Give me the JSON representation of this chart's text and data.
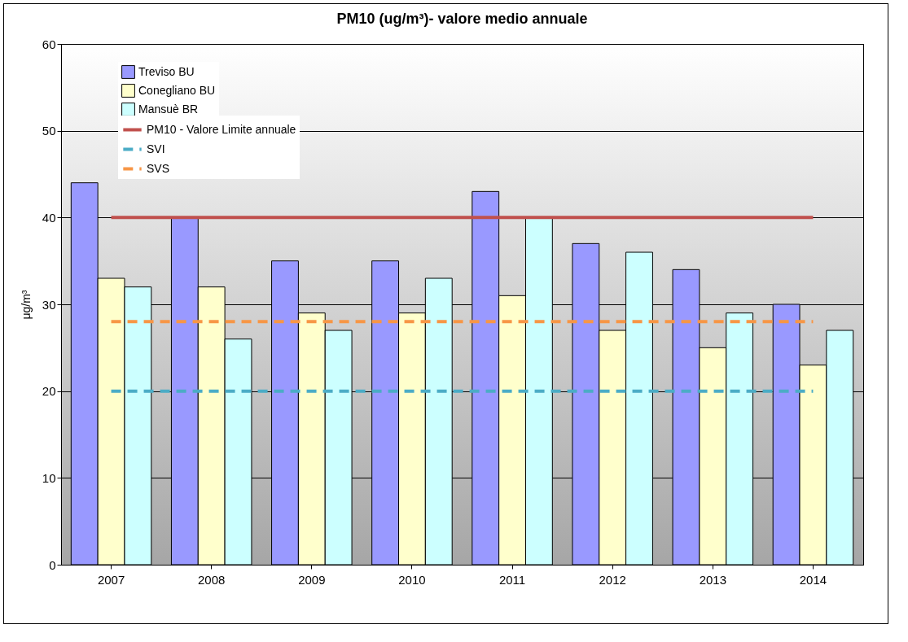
{
  "chart_data": {
    "type": "bar",
    "title": "PM10 (ug/m³)- valore medio annuale",
    "ylabel": "μg/m³",
    "categories": [
      "2007",
      "2008",
      "2009",
      "2010",
      "2011",
      "2012",
      "2013",
      "2014"
    ],
    "series": [
      {
        "name": "Treviso BU",
        "color": "#9999ff",
        "values": [
          44,
          40,
          35,
          35,
          43,
          37,
          34,
          30
        ]
      },
      {
        "name": "Conegliano BU",
        "color": "#ffffcc",
        "values": [
          33,
          32,
          29,
          29,
          31,
          27,
          25,
          23
        ]
      },
      {
        "name": "Mansuè BR",
        "color": "#ccffff",
        "values": [
          32,
          26,
          27,
          33,
          40,
          36,
          29,
          27
        ]
      },
      {
        "name": "PM10 - Valore Limite annuale",
        "type": "line",
        "color": "#c0504d",
        "line_style": "solid",
        "values": [
          40,
          40,
          40,
          40,
          40,
          40,
          40,
          40
        ]
      },
      {
        "name": "SVI",
        "type": "line",
        "color": "#4bacc6",
        "line_style": "dashed",
        "values": [
          20,
          20,
          20,
          20,
          20,
          20,
          20,
          20
        ]
      },
      {
        "name": "SVS",
        "type": "line",
        "color": "#f79646",
        "line_style": "dashed",
        "values": [
          28,
          28,
          28,
          28,
          28,
          28,
          28,
          28
        ]
      }
    ],
    "ylim": [
      0,
      60
    ],
    "yticks": [
      0,
      10,
      20,
      30,
      40,
      50,
      60
    ],
    "grid": "y",
    "legend": "top left"
  }
}
